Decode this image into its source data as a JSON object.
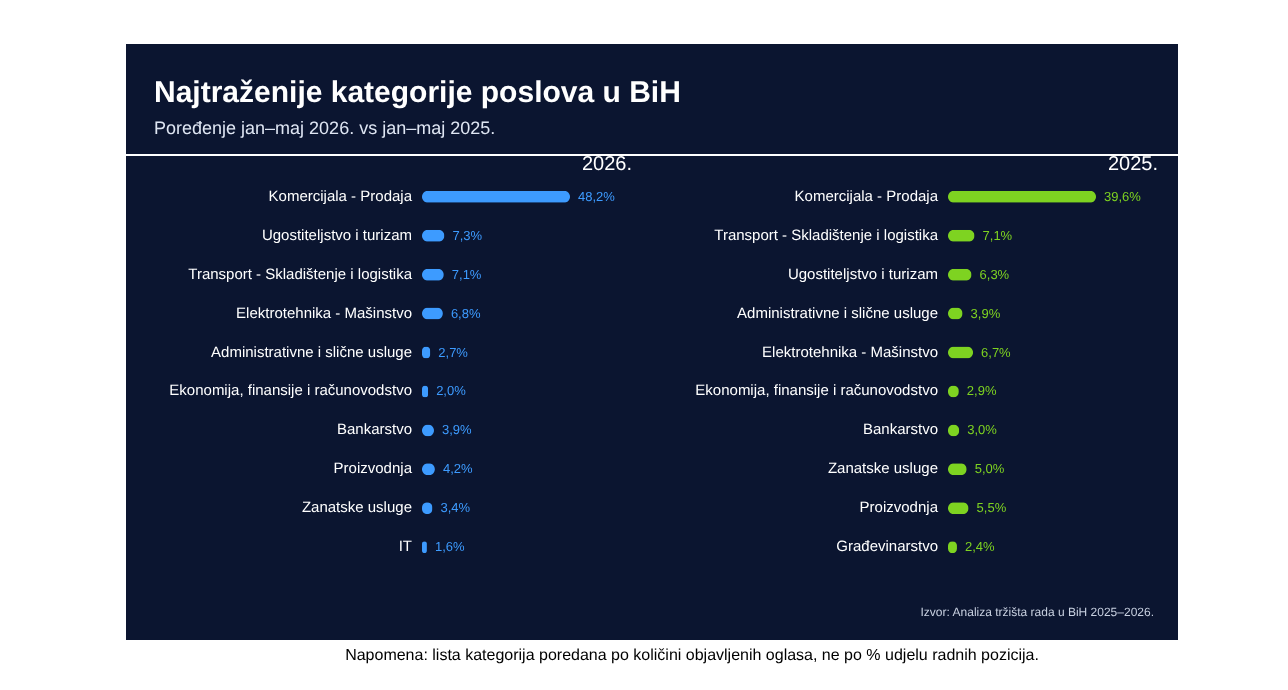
{
  "chart_data": [
    {
      "type": "bar",
      "orientation": "horizontal",
      "title": "Najtraženije kategorije poslova u BiH",
      "subtitle": "Poređenje jan–maj 2026. vs jan–maj 2025.",
      "categories": [
        "Komercijala - Prodaja",
        "Ugostiteljstvo i turizam",
        "Transport - Skladištenje i logistika",
        "Elektrotehnika - Mašinstvo",
        "Administrativne i slične usluge",
        "Ekonomija, finansije i računovodstvo",
        "Bankarstvo",
        "Proizvodnja",
        "Zanatske usluge",
        "IT"
      ],
      "series": [
        {
          "name": "2026.",
          "color": "#3d9bff",
          "values": [
            48.2,
            7.3,
            7.1,
            6.8,
            2.7,
            2.0,
            3.9,
            4.2,
            3.4,
            1.6
          ],
          "value_labels": [
            "48,2%",
            "7,3%",
            "7,1%",
            "6,8%",
            "2,7%",
            "2,0%",
            "3,9%",
            "4,2%",
            "3,4%",
            "1,6%"
          ]
        }
      ],
      "annotations": [
        "Napomena: lista kategorija poredana po količini objavljenih oglasa, ne po % udjelu radnih pozicija."
      ]
    },
    {
      "type": "bar",
      "orientation": "horizontal",
      "categories": [
        "Komercijala - Prodaja",
        "Transport - Skladištenje i logistika",
        "Ugostiteljstvo i turizam",
        "Administrativne i slične usluge",
        "Elektrotehnika - Mašinstvo",
        "Ekonomija, finansije i računovodstvo",
        "Bankarstvo",
        "Zanatske usluge",
        "Proizvodnja",
        "Građevinarstvo"
      ],
      "series": [
        {
          "name": "2025.",
          "color": "#7ed321",
          "values": [
            39.6,
            7.1,
            6.3,
            3.9,
            6.7,
            2.9,
            3.0,
            5.0,
            5.5,
            2.4
          ],
          "value_labels": [
            "39,6%",
            "7,1%",
            "6,3%",
            "3,9%",
            "6,7%",
            "2,9%",
            "3,0%",
            "5,0%",
            "5,5%",
            "2,4%"
          ]
        }
      ],
      "annotations": [
        "Izvor: Analiza tržišta rada u BiH 2025–2026."
      ]
    }
  ]
}
